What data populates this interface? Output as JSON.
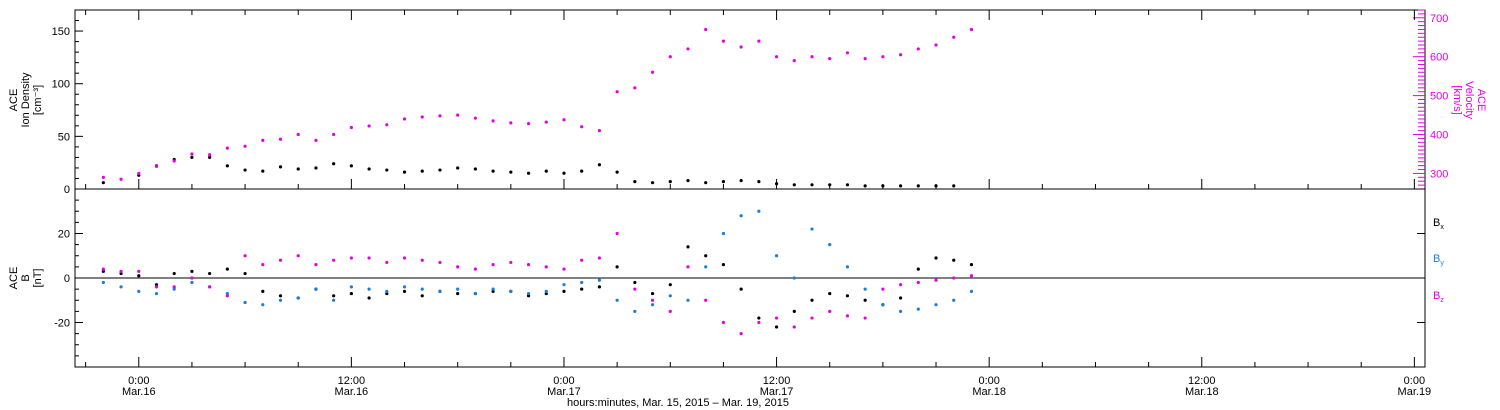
{
  "chart_data": [
    {
      "type": "scatter",
      "panel": "top",
      "ylabel_left": [
        "ACE",
        "Ion Density",
        "[cm⁻³]"
      ],
      "ylabel_right": [
        "ACE",
        "Velocity",
        "[km/s]"
      ],
      "left_axis": {
        "ylim": [
          0,
          170
        ],
        "ticks": [
          0,
          50,
          100,
          150
        ]
      },
      "right_axis": {
        "ylim": [
          260,
          720
        ],
        "ticks": [
          300,
          400,
          500,
          600,
          700
        ]
      },
      "x_hours_range": [
        -2,
        46
      ],
      "series": [
        {
          "axis": "left",
          "color": "#000000",
          "points": [
            [
              -2,
              6
            ],
            [
              0,
              13
            ],
            [
              1,
              22
            ],
            [
              2,
              28
            ],
            [
              3,
              30
            ],
            [
              4,
              30
            ],
            [
              5,
              22
            ],
            [
              6,
              18
            ],
            [
              7,
              17
            ],
            [
              8,
              21
            ],
            [
              9,
              19
            ],
            [
              10,
              20
            ],
            [
              11,
              24
            ],
            [
              12,
              22
            ],
            [
              13,
              19
            ],
            [
              14,
              18
            ],
            [
              15,
              16
            ],
            [
              16,
              17
            ],
            [
              17,
              18
            ],
            [
              18,
              20
            ],
            [
              19,
              19
            ],
            [
              20,
              17
            ],
            [
              21,
              16
            ],
            [
              22,
              15
            ],
            [
              23,
              17
            ],
            [
              24,
              15
            ],
            [
              25,
              17
            ],
            [
              26,
              23
            ],
            [
              27,
              16
            ],
            [
              28,
              7
            ],
            [
              29,
              6
            ],
            [
              30,
              7
            ],
            [
              31,
              8
            ],
            [
              32,
              6
            ],
            [
              33,
              7
            ],
            [
              34,
              8
            ],
            [
              35,
              7
            ],
            [
              36,
              5
            ],
            [
              37,
              4
            ],
            [
              38,
              4
            ],
            [
              39,
              4
            ],
            [
              40,
              4
            ],
            [
              41,
              3
            ],
            [
              42,
              3
            ],
            [
              43,
              3
            ],
            [
              44,
              3
            ],
            [
              45,
              3
            ],
            [
              46,
              3
            ]
          ]
        },
        {
          "axis": "right",
          "color": "#e600e6",
          "points": [
            [
              -2,
              290
            ],
            [
              -1,
              285
            ],
            [
              0,
              300
            ],
            [
              1,
              318
            ],
            [
              2,
              332
            ],
            [
              3,
              350
            ],
            [
              4,
              348
            ],
            [
              5,
              365
            ],
            [
              6,
              370
            ],
            [
              7,
              385
            ],
            [
              8,
              388
            ],
            [
              9,
              400
            ],
            [
              10,
              385
            ],
            [
              11,
              400
            ],
            [
              12,
              418
            ],
            [
              13,
              422
            ],
            [
              14,
              425
            ],
            [
              15,
              440
            ],
            [
              16,
              445
            ],
            [
              17,
              448
            ],
            [
              18,
              450
            ],
            [
              19,
              442
            ],
            [
              20,
              435
            ],
            [
              21,
              430
            ],
            [
              22,
              428
            ],
            [
              23,
              432
            ],
            [
              24,
              438
            ],
            [
              25,
              420
            ],
            [
              26,
              410
            ],
            [
              27,
              510
            ],
            [
              28,
              520
            ],
            [
              29,
              560
            ],
            [
              30,
              600
            ],
            [
              31,
              620
            ],
            [
              32,
              670
            ],
            [
              33,
              640
            ],
            [
              34,
              625
            ],
            [
              35,
              640
            ],
            [
              36,
              600
            ],
            [
              37,
              590
            ],
            [
              38,
              600
            ],
            [
              39,
              595
            ],
            [
              40,
              610
            ],
            [
              41,
              595
            ],
            [
              42,
              600
            ],
            [
              43,
              605
            ],
            [
              44,
              620
            ],
            [
              45,
              630
            ],
            [
              46,
              650
            ],
            [
              47,
              670
            ]
          ]
        }
      ]
    },
    {
      "type": "scatter",
      "panel": "bottom",
      "ylabel": [
        "ACE",
        "B",
        "[nT]"
      ],
      "ylim": [
        -40,
        40
      ],
      "ticks": [
        -20,
        0,
        20
      ],
      "legend": [
        "B",
        "B",
        "B"
      ],
      "legend_subscripts": [
        "x",
        "y",
        "z"
      ],
      "series": [
        {
          "name_base": "B",
          "name_sub": "x",
          "color": "#000000",
          "points": [
            [
              -2,
              3
            ],
            [
              -1,
              2
            ],
            [
              0,
              1
            ],
            [
              1,
              -3
            ],
            [
              2,
              2
            ],
            [
              3,
              3
            ],
            [
              4,
              2
            ],
            [
              5,
              4
            ],
            [
              6,
              2
            ],
            [
              7,
              -6
            ],
            [
              8,
              -8
            ],
            [
              9,
              -9
            ],
            [
              10,
              -5
            ],
            [
              11,
              -8
            ],
            [
              12,
              -7
            ],
            [
              13,
              -9
            ],
            [
              14,
              -7
            ],
            [
              15,
              -6
            ],
            [
              16,
              -8
            ],
            [
              17,
              -6
            ],
            [
              18,
              -7
            ],
            [
              19,
              -7
            ],
            [
              20,
              -6
            ],
            [
              21,
              -6
            ],
            [
              22,
              -8
            ],
            [
              23,
              -7
            ],
            [
              24,
              -6
            ],
            [
              25,
              -5
            ],
            [
              26,
              -4
            ],
            [
              27,
              5
            ],
            [
              28,
              -2
            ],
            [
              29,
              -7
            ],
            [
              30,
              -3
            ],
            [
              31,
              14
            ],
            [
              32,
              10
            ],
            [
              33,
              6
            ],
            [
              34,
              -5
            ],
            [
              35,
              -18
            ],
            [
              36,
              -22
            ],
            [
              37,
              -15
            ],
            [
              38,
              -10
            ],
            [
              39,
              -7
            ],
            [
              40,
              -8
            ],
            [
              41,
              -10
            ],
            [
              42,
              -12
            ],
            [
              43,
              -9
            ],
            [
              44,
              4
            ],
            [
              45,
              9
            ],
            [
              46,
              8
            ],
            [
              47,
              6
            ]
          ]
        },
        {
          "name_base": "B",
          "name_sub": "y",
          "color": "#1a7fd9",
          "points": [
            [
              -2,
              -2
            ],
            [
              -1,
              -4
            ],
            [
              0,
              -6
            ],
            [
              1,
              -7
            ],
            [
              2,
              -5
            ],
            [
              3,
              -2
            ],
            [
              4,
              -4
            ],
            [
              5,
              -7
            ],
            [
              6,
              -11
            ],
            [
              7,
              -12
            ],
            [
              8,
              -10
            ],
            [
              9,
              -9
            ],
            [
              10,
              -5
            ],
            [
              11,
              -10
            ],
            [
              12,
              -4
            ],
            [
              13,
              -5
            ],
            [
              14,
              -6
            ],
            [
              15,
              -4
            ],
            [
              16,
              -5
            ],
            [
              17,
              -6
            ],
            [
              18,
              -5
            ],
            [
              19,
              -7
            ],
            [
              20,
              -5
            ],
            [
              21,
              -6
            ],
            [
              22,
              -7
            ],
            [
              23,
              -6
            ],
            [
              24,
              -3
            ],
            [
              25,
              -2
            ],
            [
              26,
              -1
            ],
            [
              27,
              -10
            ],
            [
              28,
              -15
            ],
            [
              29,
              -12
            ],
            [
              30,
              -8
            ],
            [
              31,
              -10
            ],
            [
              32,
              5
            ],
            [
              33,
              20
            ],
            [
              34,
              28
            ],
            [
              35,
              30
            ],
            [
              36,
              10
            ],
            [
              37,
              0
            ],
            [
              38,
              22
            ],
            [
              39,
              15
            ],
            [
              40,
              5
            ],
            [
              41,
              -5
            ],
            [
              42,
              -12
            ],
            [
              43,
              -15
            ],
            [
              44,
              -14
            ],
            [
              45,
              -12
            ],
            [
              46,
              -10
            ],
            [
              47,
              -6
            ]
          ]
        },
        {
          "name_base": "B",
          "name_sub": "z",
          "color": "#e600e6",
          "points": [
            [
              -2,
              4
            ],
            [
              -1,
              3
            ],
            [
              0,
              3
            ],
            [
              1,
              -4
            ],
            [
              2,
              -4
            ],
            [
              3,
              0
            ],
            [
              4,
              -4
            ],
            [
              5,
              -8
            ],
            [
              6,
              10
            ],
            [
              7,
              6
            ],
            [
              8,
              8
            ],
            [
              9,
              10
            ],
            [
              10,
              6
            ],
            [
              11,
              8
            ],
            [
              12,
              9
            ],
            [
              13,
              9
            ],
            [
              14,
              7
            ],
            [
              15,
              9
            ],
            [
              16,
              8
            ],
            [
              17,
              7
            ],
            [
              18,
              5
            ],
            [
              19,
              4
            ],
            [
              20,
              6
            ],
            [
              21,
              7
            ],
            [
              22,
              6
            ],
            [
              23,
              5
            ],
            [
              24,
              4
            ],
            [
              25,
              8
            ],
            [
              26,
              9
            ],
            [
              27,
              20
            ],
            [
              28,
              -5
            ],
            [
              29,
              -10
            ],
            [
              30,
              -15
            ],
            [
              31,
              5
            ],
            [
              32,
              -10
            ],
            [
              33,
              -20
            ],
            [
              34,
              -25
            ],
            [
              35,
              -20
            ],
            [
              36,
              -18
            ],
            [
              37,
              -22
            ],
            [
              38,
              -18
            ],
            [
              39,
              -15
            ],
            [
              40,
              -17
            ],
            [
              41,
              -18
            ],
            [
              42,
              -5
            ],
            [
              43,
              -3
            ],
            [
              44,
              -2
            ],
            [
              45,
              -1
            ],
            [
              46,
              0
            ],
            [
              47,
              1
            ]
          ]
        }
      ]
    }
  ],
  "xaxis": {
    "tick_labels": [
      {
        "time": "0:00",
        "date": "Mar.16"
      },
      {
        "time": "12:00",
        "date": "Mar.16"
      },
      {
        "time": "0:00",
        "date": "Mar.17"
      },
      {
        "time": "12:00",
        "date": "Mar.17"
      },
      {
        "time": "0:00",
        "date": "Mar.18"
      },
      {
        "time": "12:00",
        "date": "Mar.18"
      },
      {
        "time": "0:00",
        "date": "Mar.19"
      }
    ],
    "tick_hours": [
      0,
      12,
      24,
      36,
      48,
      60,
      72
    ],
    "title": "hours:minutes, Mar. 15, 2015 – Mar. 19, 2015"
  }
}
